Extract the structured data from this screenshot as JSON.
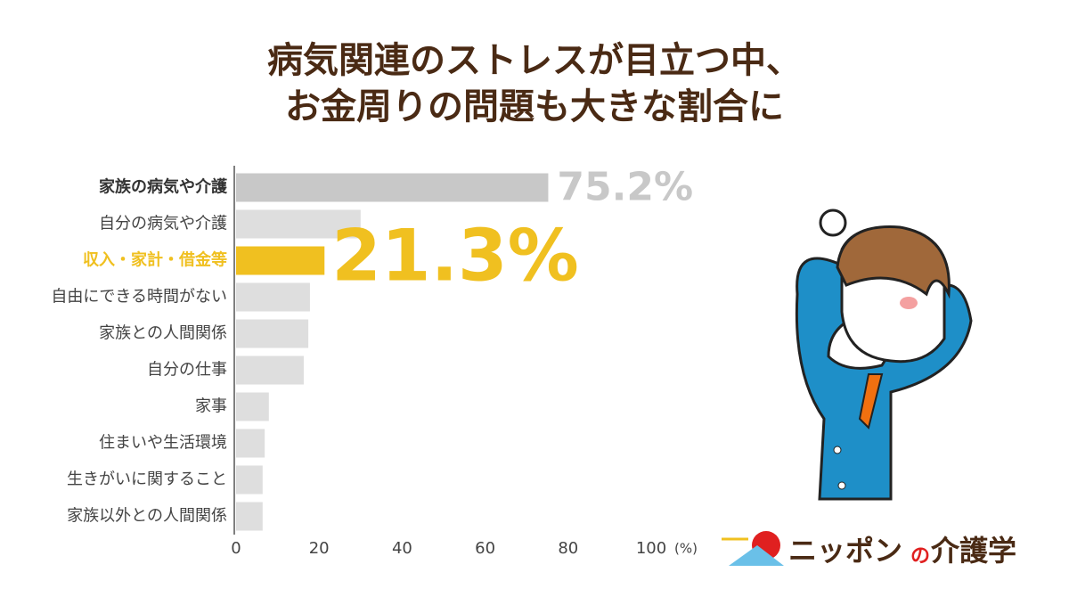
{
  "chart_data": {
    "type": "hbar",
    "title": [
      "病気関連のストレスが目立つ中、",
      "お金周りの問題も大きな割合に"
    ],
    "categories": [
      "家族の病気や介護",
      "自分の病気や介護",
      "収入・家計・借金等",
      "自由にできる時間がない",
      "家族との人間関係",
      "自分の仕事",
      "家事",
      "住まいや生活環境",
      "生きがいに関すること",
      "家族以外との人間関係"
    ],
    "values": [
      75.2,
      30.0,
      21.3,
      17.8,
      17.4,
      16.3,
      7.9,
      6.9,
      6.4,
      6.4
    ],
    "value_labels": [
      "75.2%",
      null,
      "21.3%",
      null,
      null,
      null,
      null,
      null,
      null,
      null
    ],
    "colors": [
      "#c8c8c8",
      "#dedede",
      "#f0c020",
      "#dedede",
      "#dedede",
      "#dedede",
      "#dedede",
      "#dedede",
      "#dedede",
      "#dedede"
    ],
    "label_colors": [
      "#333333",
      "#444444",
      "#f0c020",
      "#444444",
      "#444444",
      "#444444",
      "#444444",
      "#444444",
      "#444444",
      "#444444"
    ],
    "xlim": [
      0,
      100
    ],
    "xticks": [
      0,
      20,
      40,
      60,
      80,
      100
    ],
    "xlabel": "(%)",
    "logo": [
      "ニッポン",
      "の",
      "介護学"
    ]
  }
}
